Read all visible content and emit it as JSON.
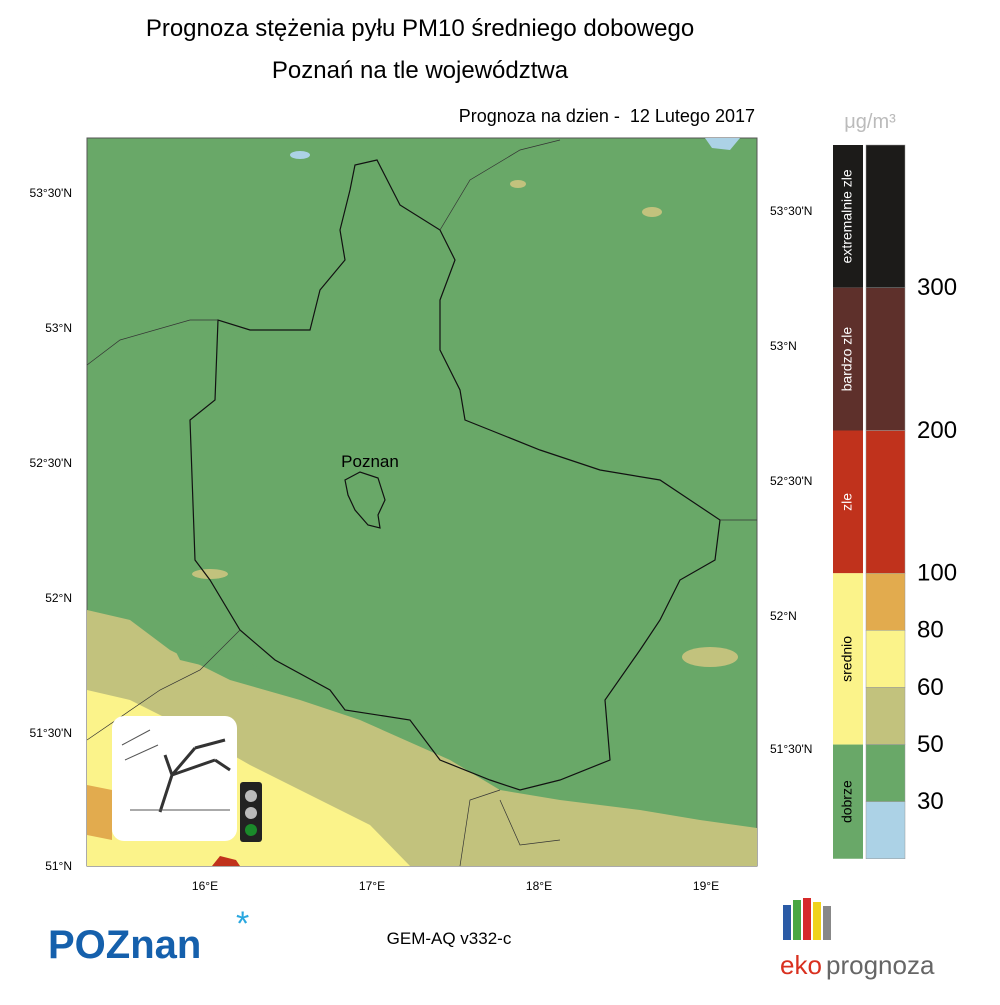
{
  "header": {
    "title": "Prognoza stężenia pyłu PM10 średniego dobowego",
    "subtitle": "Poznań na tle województwa",
    "forecast_date": "Prognoza na dzien -  12 Lutego 2017"
  },
  "map": {
    "city_label": "Poznan",
    "lat_labels_left": [
      "53°30'N",
      "53°N",
      "52°30'N",
      "52°N",
      "51°30'N",
      "51°N"
    ],
    "lat_labels_right": [
      "53°30'N",
      "53°N",
      "52°30'N",
      "52°N",
      "51°30'N"
    ],
    "lon_labels": [
      "16°E",
      "17°E",
      "18°E",
      "19°E"
    ]
  },
  "legend": {
    "unit": "μg/m³",
    "categories": [
      {
        "label": "extremalnie zle",
        "color": "#1c1b19"
      },
      {
        "label": "bardzo zle",
        "color": "#5e302b"
      },
      {
        "label": "zle",
        "color": "#c0321c"
      },
      {
        "label": "srednio",
        "color": "#fbf38a"
      },
      {
        "label": "dobrze",
        "color": "#69a868"
      }
    ],
    "scale_colors": [
      "#1c1b19",
      "#5e302b",
      "#c0321c",
      "#e2ab4e",
      "#fbf38a",
      "#c2c27d",
      "#69a868",
      "#acd2e6"
    ],
    "thresholds": [
      300,
      200,
      100,
      80,
      60,
      50,
      30
    ]
  },
  "footer": {
    "model": "GEM-AQ v332-c",
    "city_logo": "POZnan",
    "brand_1": "eko",
    "brand_2": "prognoza"
  }
}
